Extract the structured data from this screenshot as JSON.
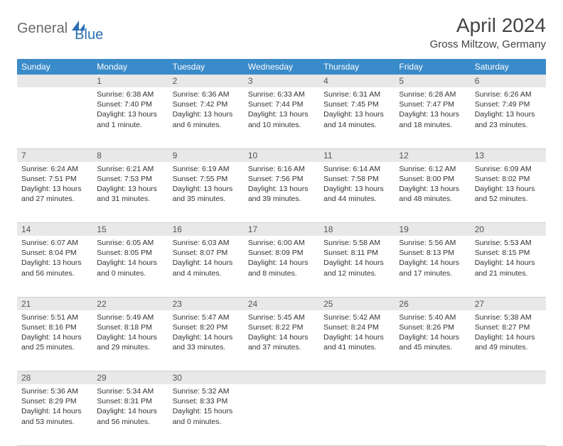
{
  "logo": {
    "part1": "General",
    "part2": "Blue"
  },
  "title": "April 2024",
  "subtitle": "Gross Miltzow, Germany",
  "header_bg": "#3a8bc9",
  "daynum_bg": "#e8e8e8",
  "weekdays": [
    "Sunday",
    "Monday",
    "Tuesday",
    "Wednesday",
    "Thursday",
    "Friday",
    "Saturday"
  ],
  "weeks": [
    {
      "nums": [
        "",
        "1",
        "2",
        "3",
        "4",
        "5",
        "6"
      ],
      "cells": [
        {
          "sunrise": "",
          "sunset": "",
          "daylight1": "",
          "daylight2": ""
        },
        {
          "sunrise": "Sunrise: 6:38 AM",
          "sunset": "Sunset: 7:40 PM",
          "daylight1": "Daylight: 13 hours",
          "daylight2": "and 1 minute."
        },
        {
          "sunrise": "Sunrise: 6:36 AM",
          "sunset": "Sunset: 7:42 PM",
          "daylight1": "Daylight: 13 hours",
          "daylight2": "and 6 minutes."
        },
        {
          "sunrise": "Sunrise: 6:33 AM",
          "sunset": "Sunset: 7:44 PM",
          "daylight1": "Daylight: 13 hours",
          "daylight2": "and 10 minutes."
        },
        {
          "sunrise": "Sunrise: 6:31 AM",
          "sunset": "Sunset: 7:45 PM",
          "daylight1": "Daylight: 13 hours",
          "daylight2": "and 14 minutes."
        },
        {
          "sunrise": "Sunrise: 6:28 AM",
          "sunset": "Sunset: 7:47 PM",
          "daylight1": "Daylight: 13 hours",
          "daylight2": "and 18 minutes."
        },
        {
          "sunrise": "Sunrise: 6:26 AM",
          "sunset": "Sunset: 7:49 PM",
          "daylight1": "Daylight: 13 hours",
          "daylight2": "and 23 minutes."
        }
      ]
    },
    {
      "nums": [
        "7",
        "8",
        "9",
        "10",
        "11",
        "12",
        "13"
      ],
      "cells": [
        {
          "sunrise": "Sunrise: 6:24 AM",
          "sunset": "Sunset: 7:51 PM",
          "daylight1": "Daylight: 13 hours",
          "daylight2": "and 27 minutes."
        },
        {
          "sunrise": "Sunrise: 6:21 AM",
          "sunset": "Sunset: 7:53 PM",
          "daylight1": "Daylight: 13 hours",
          "daylight2": "and 31 minutes."
        },
        {
          "sunrise": "Sunrise: 6:19 AM",
          "sunset": "Sunset: 7:55 PM",
          "daylight1": "Daylight: 13 hours",
          "daylight2": "and 35 minutes."
        },
        {
          "sunrise": "Sunrise: 6:16 AM",
          "sunset": "Sunset: 7:56 PM",
          "daylight1": "Daylight: 13 hours",
          "daylight2": "and 39 minutes."
        },
        {
          "sunrise": "Sunrise: 6:14 AM",
          "sunset": "Sunset: 7:58 PM",
          "daylight1": "Daylight: 13 hours",
          "daylight2": "and 44 minutes."
        },
        {
          "sunrise": "Sunrise: 6:12 AM",
          "sunset": "Sunset: 8:00 PM",
          "daylight1": "Daylight: 13 hours",
          "daylight2": "and 48 minutes."
        },
        {
          "sunrise": "Sunrise: 6:09 AM",
          "sunset": "Sunset: 8:02 PM",
          "daylight1": "Daylight: 13 hours",
          "daylight2": "and 52 minutes."
        }
      ]
    },
    {
      "nums": [
        "14",
        "15",
        "16",
        "17",
        "18",
        "19",
        "20"
      ],
      "cells": [
        {
          "sunrise": "Sunrise: 6:07 AM",
          "sunset": "Sunset: 8:04 PM",
          "daylight1": "Daylight: 13 hours",
          "daylight2": "and 56 minutes."
        },
        {
          "sunrise": "Sunrise: 6:05 AM",
          "sunset": "Sunset: 8:05 PM",
          "daylight1": "Daylight: 14 hours",
          "daylight2": "and 0 minutes."
        },
        {
          "sunrise": "Sunrise: 6:03 AM",
          "sunset": "Sunset: 8:07 PM",
          "daylight1": "Daylight: 14 hours",
          "daylight2": "and 4 minutes."
        },
        {
          "sunrise": "Sunrise: 6:00 AM",
          "sunset": "Sunset: 8:09 PM",
          "daylight1": "Daylight: 14 hours",
          "daylight2": "and 8 minutes."
        },
        {
          "sunrise": "Sunrise: 5:58 AM",
          "sunset": "Sunset: 8:11 PM",
          "daylight1": "Daylight: 14 hours",
          "daylight2": "and 12 minutes."
        },
        {
          "sunrise": "Sunrise: 5:56 AM",
          "sunset": "Sunset: 8:13 PM",
          "daylight1": "Daylight: 14 hours",
          "daylight2": "and 17 minutes."
        },
        {
          "sunrise": "Sunrise: 5:53 AM",
          "sunset": "Sunset: 8:15 PM",
          "daylight1": "Daylight: 14 hours",
          "daylight2": "and 21 minutes."
        }
      ]
    },
    {
      "nums": [
        "21",
        "22",
        "23",
        "24",
        "25",
        "26",
        "27"
      ],
      "cells": [
        {
          "sunrise": "Sunrise: 5:51 AM",
          "sunset": "Sunset: 8:16 PM",
          "daylight1": "Daylight: 14 hours",
          "daylight2": "and 25 minutes."
        },
        {
          "sunrise": "Sunrise: 5:49 AM",
          "sunset": "Sunset: 8:18 PM",
          "daylight1": "Daylight: 14 hours",
          "daylight2": "and 29 minutes."
        },
        {
          "sunrise": "Sunrise: 5:47 AM",
          "sunset": "Sunset: 8:20 PM",
          "daylight1": "Daylight: 14 hours",
          "daylight2": "and 33 minutes."
        },
        {
          "sunrise": "Sunrise: 5:45 AM",
          "sunset": "Sunset: 8:22 PM",
          "daylight1": "Daylight: 14 hours",
          "daylight2": "and 37 minutes."
        },
        {
          "sunrise": "Sunrise: 5:42 AM",
          "sunset": "Sunset: 8:24 PM",
          "daylight1": "Daylight: 14 hours",
          "daylight2": "and 41 minutes."
        },
        {
          "sunrise": "Sunrise: 5:40 AM",
          "sunset": "Sunset: 8:26 PM",
          "daylight1": "Daylight: 14 hours",
          "daylight2": "and 45 minutes."
        },
        {
          "sunrise": "Sunrise: 5:38 AM",
          "sunset": "Sunset: 8:27 PM",
          "daylight1": "Daylight: 14 hours",
          "daylight2": "and 49 minutes."
        }
      ]
    },
    {
      "nums": [
        "28",
        "29",
        "30",
        "",
        "",
        "",
        ""
      ],
      "cells": [
        {
          "sunrise": "Sunrise: 5:36 AM",
          "sunset": "Sunset: 8:29 PM",
          "daylight1": "Daylight: 14 hours",
          "daylight2": "and 53 minutes."
        },
        {
          "sunrise": "Sunrise: 5:34 AM",
          "sunset": "Sunset: 8:31 PM",
          "daylight1": "Daylight: 14 hours",
          "daylight2": "and 56 minutes."
        },
        {
          "sunrise": "Sunrise: 5:32 AM",
          "sunset": "Sunset: 8:33 PM",
          "daylight1": "Daylight: 15 hours",
          "daylight2": "and 0 minutes."
        },
        {
          "sunrise": "",
          "sunset": "",
          "daylight1": "",
          "daylight2": ""
        },
        {
          "sunrise": "",
          "sunset": "",
          "daylight1": "",
          "daylight2": ""
        },
        {
          "sunrise": "",
          "sunset": "",
          "daylight1": "",
          "daylight2": ""
        },
        {
          "sunrise": "",
          "sunset": "",
          "daylight1": "",
          "daylight2": ""
        }
      ]
    }
  ]
}
